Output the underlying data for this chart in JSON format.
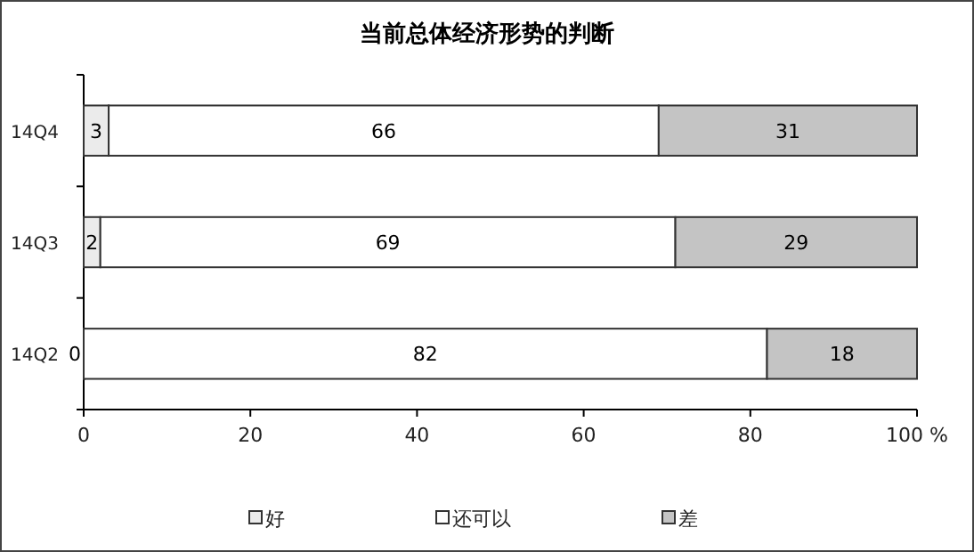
{
  "chart_data": {
    "type": "bar",
    "orientation": "horizontal",
    "stacked": true,
    "title": "当前总体经济形势的判断",
    "categories": [
      "14Q4",
      "14Q3",
      "14Q2"
    ],
    "series": [
      {
        "name": "好",
        "color": "#ebebeb",
        "values": [
          3,
          2,
          0
        ]
      },
      {
        "name": "还可以",
        "color": "#ffffff",
        "values": [
          66,
          69,
          82
        ]
      },
      {
        "name": "差",
        "color": "#c4c4c4",
        "values": [
          31,
          29,
          18
        ]
      }
    ],
    "xlim": [
      0,
      100
    ],
    "xticks": [
      0,
      20,
      40,
      60,
      80,
      {
        "value": 100,
        "label": "100 %"
      }
    ],
    "data_labels": true,
    "legend": "bottom"
  }
}
